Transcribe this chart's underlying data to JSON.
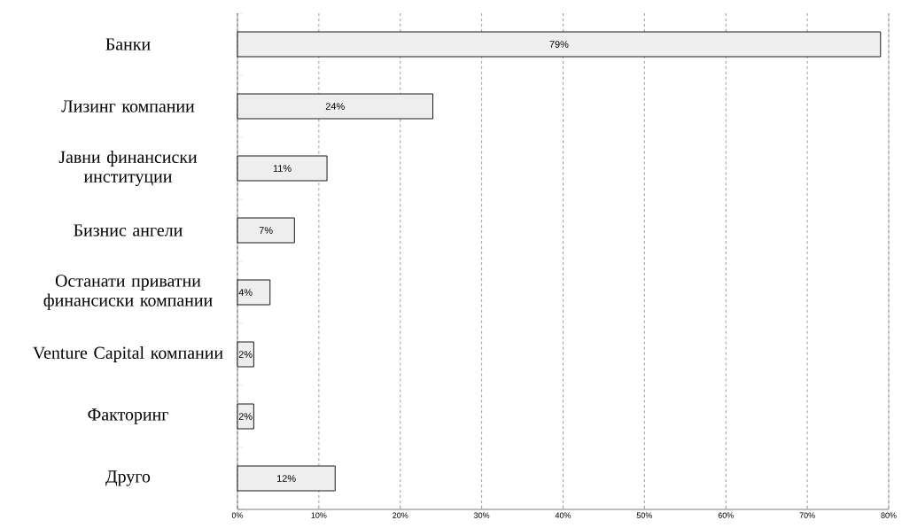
{
  "chart_data": {
    "type": "bar",
    "orientation": "horizontal",
    "categories": [
      "Банки",
      "Лизинг компании",
      "Јавни финансиски институции",
      "Бизнис ангели",
      "Останати приватни финансиски компании",
      "Venture Capital компании",
      "Факторинг",
      "Друго"
    ],
    "values": [
      79,
      24,
      11,
      7,
      4,
      2,
      2,
      12
    ],
    "value_labels": [
      "79%",
      "24%",
      "11%",
      "7%",
      "4%",
      "2%",
      "2%",
      "12%"
    ],
    "color": "#eeeeee",
    "xlim": [
      0,
      80
    ],
    "xticks": [
      {
        "value": 0,
        "label": "0%"
      },
      {
        "value": 10,
        "label": "10%"
      },
      {
        "value": 20,
        "label": "20%"
      },
      {
        "value": 30,
        "label": "30%"
      },
      {
        "value": 40,
        "label": "40%"
      },
      {
        "value": 50,
        "label": "50%"
      },
      {
        "value": 60,
        "label": "60%"
      },
      {
        "value": 70,
        "label": "70%"
      },
      {
        "value": 80,
        "label": "80%"
      }
    ],
    "grid": "x"
  }
}
